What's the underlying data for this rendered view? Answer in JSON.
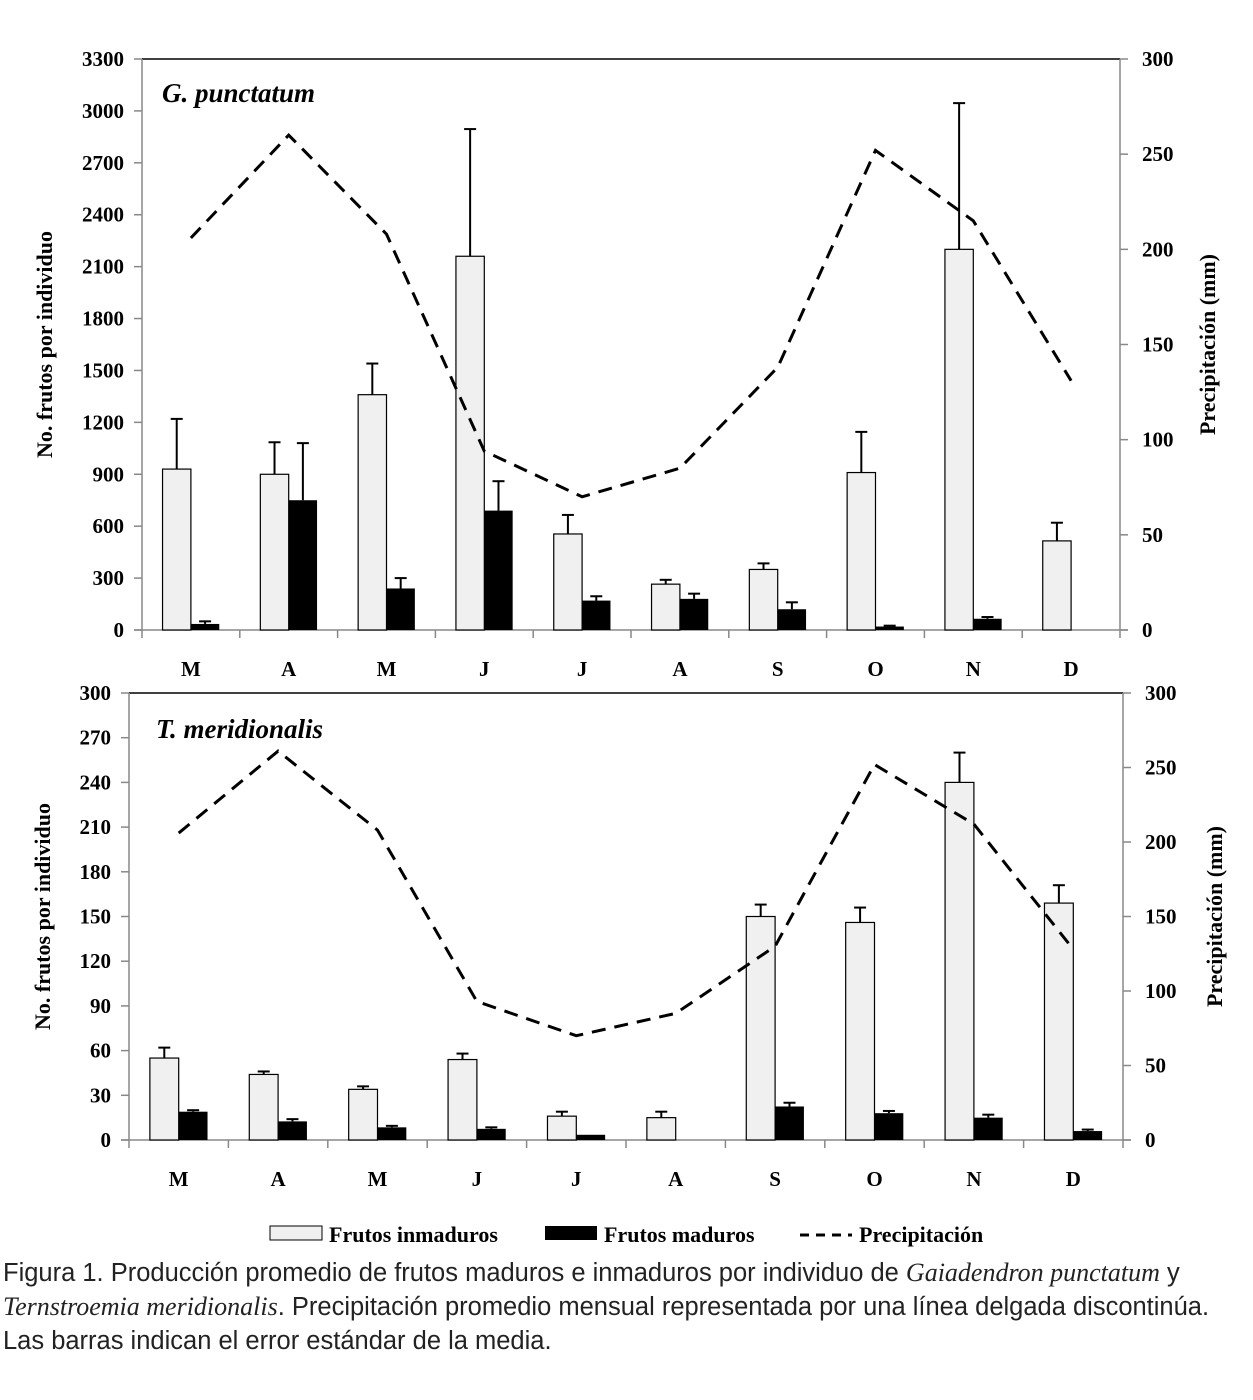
{
  "chart_data": [
    {
      "type": "bar",
      "title": "G. punctatum",
      "categories": [
        "M",
        "A",
        "M",
        "J",
        "J",
        "A",
        "S",
        "O",
        "N",
        "D"
      ],
      "ylabel": "No. frutos por individuo",
      "y2label": "Precipitación (mm)",
      "ylim": [
        0,
        3300
      ],
      "yticks": [
        0,
        300,
        600,
        900,
        1200,
        1500,
        1800,
        2100,
        2400,
        2700,
        3000,
        3300
      ],
      "y2lim": [
        0,
        300
      ],
      "y2ticks": [
        0,
        50,
        100,
        150,
        200,
        250,
        300
      ],
      "grid": false,
      "series": [
        {
          "name": "Frutos inmaduros",
          "kind": "bar",
          "color": "#f0f0f0",
          "values": [
            930,
            900,
            1360,
            2160,
            555,
            265,
            350,
            910,
            2200,
            515
          ],
          "error_upper": [
            1220,
            1085,
            1540,
            2895,
            665,
            290,
            385,
            1145,
            3045,
            620
          ]
        },
        {
          "name": "Frutos maduros",
          "kind": "bar",
          "color": "#000000",
          "values": [
            35,
            750,
            240,
            690,
            170,
            180,
            120,
            20,
            65,
            null
          ],
          "error_upper": [
            50,
            1080,
            300,
            860,
            195,
            210,
            160,
            25,
            75,
            null
          ]
        },
        {
          "name": "Precipitación",
          "kind": "line",
          "axis": "right",
          "style": "dashed",
          "values": [
            206,
            260,
            208,
            94,
            70,
            85,
            138,
            252,
            215,
            131
          ]
        }
      ]
    },
    {
      "type": "bar",
      "title": "T. meridionalis",
      "categories": [
        "M",
        "A",
        "M",
        "J",
        "J",
        "A",
        "S",
        "O",
        "N",
        "D"
      ],
      "ylabel": "No. frutos por individuo",
      "y2label": "Precipitación (mm)",
      "ylim": [
        0,
        300
      ],
      "yticks": [
        0,
        30,
        60,
        90,
        120,
        150,
        180,
        210,
        240,
        270,
        300
      ],
      "y2lim": [
        0,
        300
      ],
      "y2ticks": [
        0,
        50,
        100,
        150,
        200,
        250,
        300
      ],
      "grid": false,
      "series": [
        {
          "name": "Frutos inmaduros",
          "kind": "bar",
          "color": "#f0f0f0",
          "values": [
            55,
            44,
            34,
            54,
            16,
            15,
            150,
            146,
            240,
            159
          ],
          "error_upper": [
            62,
            46,
            36,
            58,
            19,
            19,
            158,
            156,
            260,
            171
          ]
        },
        {
          "name": "Frutos maduros",
          "kind": "bar",
          "color": "#000000",
          "values": [
            19,
            12.5,
            8.5,
            7.5,
            3.5,
            null,
            22.5,
            18,
            15,
            6
          ],
          "error_upper": [
            20,
            14,
            9.5,
            8.5,
            null,
            null,
            25,
            19.5,
            17,
            7
          ]
        },
        {
          "name": "Precipitación",
          "kind": "line",
          "axis": "right",
          "style": "dashed",
          "values": [
            206,
            261,
            208,
            93,
            70,
            85,
            130,
            252,
            212,
            128
          ]
        }
      ]
    }
  ],
  "legend": {
    "position": "bottom-center",
    "items": [
      {
        "label": "Frutos inmaduros",
        "symbol": "light-bar"
      },
      {
        "label": "Frutos maduros",
        "symbol": "dark-bar"
      },
      {
        "label": "Precipitación",
        "symbol": "dashed-line"
      }
    ]
  },
  "caption": {
    "prefix": "Figura 1. Producción promedio de frutos maduros e inmaduros por individuo de ",
    "species1": "Gaiadendron punctatum",
    "joiner": " y ",
    "species2": "Ternstroemia meridionalis",
    "suffix": ". Precipitación promedio mensual representada por una línea delgada discontinúa. Las barras indican el error estándar de la media."
  }
}
